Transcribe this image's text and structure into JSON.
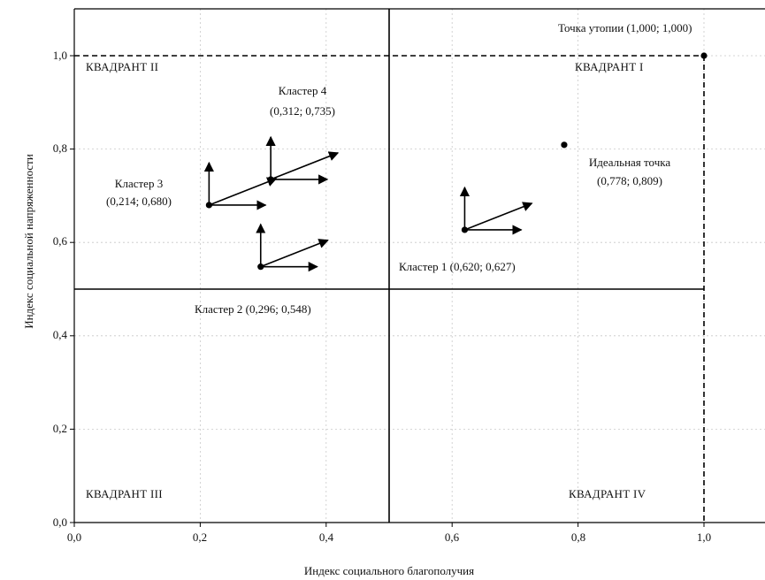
{
  "chart_data": {
    "type": "scatter",
    "xlabel": "Индекс социального благополучия",
    "ylabel": "Индекс социальной напряженности",
    "xlim": [
      0,
      1.12
    ],
    "ylim": [
      0,
      1.12
    ],
    "xticks": [
      "0,0",
      "0,2",
      "0,4",
      "0,6",
      "0,8",
      "1,0"
    ],
    "yticks": [
      "0,0",
      "0,2",
      "0,4",
      "0,6",
      "0,8",
      "1,0"
    ],
    "grid": true,
    "quadrants": [
      "КВАДРАНТ I",
      "КВАДРАНТ II",
      "КВАДРАНТ III",
      "КВАДРАНТ IV"
    ],
    "quadrant_divider": {
      "x": 0.5,
      "y": 0.5
    },
    "utopia_point": {
      "x": 1.0,
      "y": 1.0,
      "label": "Точка утопии (1,000; 1,000)"
    },
    "ideal_point": {
      "x": 0.778,
      "y": 0.809,
      "label_line1": "Идеальная точка",
      "label_line2": "(0,778; 0,809)"
    },
    "clusters": [
      {
        "label": "Кластер 1 (0,620; 0,627)",
        "x": 0.62,
        "y": 0.627
      },
      {
        "label": "Кластер 2 (0,296; 0,548)",
        "x": 0.296,
        "y": 0.548
      },
      {
        "label_line1": "Кластер 3",
        "label_line2": "(0,214; 0,680)",
        "x": 0.214,
        "y": 0.68
      },
      {
        "label_line1": "Кластер 4",
        "label_line2": "(0,312; 0,735)",
        "x": 0.312,
        "y": 0.735
      }
    ]
  }
}
